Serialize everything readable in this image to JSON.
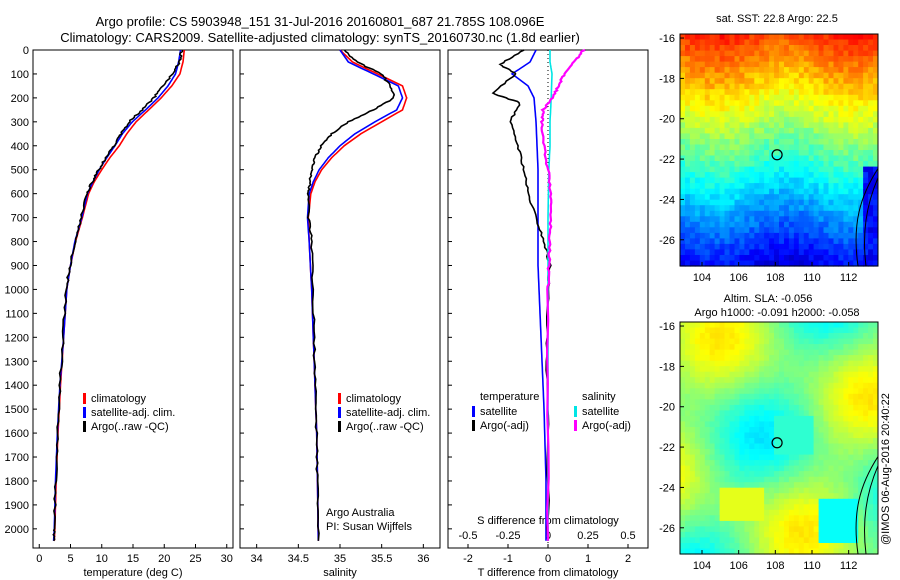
{
  "header": {
    "title_line1": "Argo profile: CS 5903948_151 31-Jul-2016 20160801_687 21.785S 108.096E",
    "title_line2": "Climatology: CARS2009. Satellite-adjusted climatology: synTS_20160730.nc (1.8d earlier)"
  },
  "credit": "@IMOS 06-Aug-2016 20:40:22",
  "colors": {
    "climatology": "#ff0000",
    "satellite": "#0000ff",
    "argo": "#000000",
    "sat_diff_T": "#00e5e5",
    "argo_diff_S": "#ff00ff"
  },
  "chart_data": [
    {
      "id": "temperature",
      "type": "line",
      "xlabel": "temperature (deg C)",
      "xlim": [
        -1,
        31
      ],
      "xticks": [
        0,
        5,
        10,
        15,
        20,
        25,
        30
      ],
      "ylim": [
        2080,
        0
      ],
      "yticks": [
        0,
        100,
        200,
        300,
        400,
        500,
        600,
        700,
        800,
        900,
        1000,
        1100,
        1200,
        1300,
        1400,
        1500,
        1600,
        1700,
        1800,
        1900,
        2000
      ],
      "legend": [
        "climatology",
        "satellite-adj. clim.",
        "Argo(..raw -QC)"
      ],
      "series": [
        {
          "name": "climatology",
          "color": "#ff0000",
          "x": [
            23.2,
            23.0,
            22.5,
            21.2,
            19.5,
            17.5,
            15.5,
            14.0,
            12.8,
            11.3,
            10.0,
            8.8,
            7.9,
            6.9,
            5.8,
            5.0,
            4.4,
            3.9,
            3.4,
            3.0,
            2.7,
            2.5,
            2.4
          ],
          "y": [
            0,
            50,
            100,
            150,
            200,
            250,
            300,
            350,
            400,
            450,
            500,
            550,
            600,
            700,
            800,
            900,
            1000,
            1200,
            1400,
            1600,
            1800,
            2000,
            2050
          ]
        },
        {
          "name": "satellite-adj. clim.",
          "color": "#0000ff",
          "x": [
            22.6,
            22.3,
            21.8,
            20.6,
            19.0,
            17.0,
            14.9,
            13.3,
            12.1,
            10.8,
            9.6,
            8.6,
            7.7,
            6.8,
            5.7,
            5.0,
            4.4,
            3.9,
            3.3,
            2.9,
            2.6,
            2.4,
            2.3
          ],
          "y": [
            0,
            50,
            100,
            150,
            200,
            250,
            300,
            350,
            400,
            450,
            500,
            550,
            600,
            700,
            800,
            900,
            1000,
            1200,
            1400,
            1600,
            1800,
            2000,
            2050
          ]
        },
        {
          "name": "Argo(..raw -QC)",
          "color": "#000000",
          "x": [
            22.8,
            22.4,
            21.4,
            19.8,
            18.3,
            16.4,
            14.4,
            13.1,
            11.9,
            10.7,
            9.5,
            8.5,
            7.6,
            6.7,
            5.7,
            4.9,
            4.3,
            3.8,
            3.3,
            2.9,
            2.6,
            2.4,
            2.3
          ],
          "y": [
            0,
            50,
            100,
            150,
            200,
            250,
            300,
            350,
            400,
            450,
            500,
            550,
            600,
            700,
            800,
            900,
            1000,
            1200,
            1400,
            1600,
            1800,
            2000,
            2050
          ]
        }
      ]
    },
    {
      "id": "salinity",
      "type": "line",
      "xlabel": "salinity",
      "xlim": [
        33.8,
        36.2
      ],
      "xticks": [
        34,
        34.5,
        35,
        35.5,
        36
      ],
      "xticklabels": [
        "34",
        "34.5",
        "35",
        "35.5",
        "36"
      ],
      "ylim": [
        2080,
        0
      ],
      "legend": [
        "climatology",
        "satellite-adj. clim.",
        "Argo(..raw -QC)"
      ],
      "annotation": [
        "Argo Australia",
        "PI: Susan Wijffels"
      ],
      "series": [
        {
          "name": "climatology",
          "color": "#ff0000",
          "x": [
            35.0,
            35.15,
            35.45,
            35.75,
            35.8,
            35.75,
            35.5,
            35.25,
            35.05,
            34.9,
            34.78,
            34.7,
            34.65,
            34.62,
            34.63,
            34.66,
            34.68,
            34.7,
            34.72,
            34.73,
            34.74
          ],
          "y": [
            0,
            50,
            100,
            150,
            200,
            250,
            300,
            350,
            400,
            450,
            500,
            550,
            600,
            700,
            800,
            1000,
            1200,
            1400,
            1600,
            1800,
            2050
          ]
        },
        {
          "name": "satellite-adj. clim.",
          "color": "#0000ff",
          "x": [
            35.0,
            35.1,
            35.4,
            35.7,
            35.75,
            35.68,
            35.42,
            35.18,
            35.0,
            34.86,
            34.75,
            34.68,
            34.63,
            34.61,
            34.63,
            34.66,
            34.68,
            34.7,
            34.72,
            34.73,
            34.74
          ],
          "y": [
            0,
            50,
            100,
            150,
            200,
            250,
            300,
            350,
            400,
            450,
            500,
            550,
            600,
            700,
            800,
            1000,
            1200,
            1400,
            1600,
            1800,
            2050
          ]
        },
        {
          "name": "Argo(..raw -QC)",
          "color": "#000000",
          "x": [
            35.05,
            35.2,
            35.5,
            35.6,
            35.65,
            35.4,
            35.1,
            34.9,
            34.78,
            34.7,
            34.66,
            34.64,
            34.62,
            34.62,
            34.66,
            34.67,
            34.69,
            34.7,
            34.72,
            34.73,
            34.74
          ],
          "y": [
            0,
            50,
            100,
            150,
            200,
            250,
            300,
            350,
            400,
            450,
            500,
            550,
            600,
            700,
            800,
            1000,
            1200,
            1400,
            1600,
            1800,
            2050
          ]
        }
      ]
    },
    {
      "id": "difference",
      "type": "line",
      "xlabel": "T difference from climatology",
      "xlabel_top": "S difference from climatology",
      "xlim": [
        -2.5,
        2.5
      ],
      "xticks": [
        -2,
        -1,
        0,
        1,
        2
      ],
      "sticks": [
        -0.5,
        -0.25,
        0,
        0.25,
        0.5
      ],
      "sticklabels": [
        "-0.5",
        "-0.25",
        "0",
        "0.25",
        "0.5"
      ],
      "ylim": [
        2080,
        0
      ],
      "legend_headers": [
        "temperature",
        "salinity"
      ],
      "legend": [
        "satellite",
        "Argo(-adj)",
        "satellite",
        "Argo(-adj)"
      ],
      "series": [
        {
          "name": "temperature satellite",
          "color": "#0000ff",
          "x": [
            -0.3,
            -0.45,
            -0.9,
            -0.5,
            -0.35,
            -0.3,
            -0.25,
            -0.25,
            -0.25,
            -0.2,
            -0.15,
            -0.1,
            -0.05,
            -0.05
          ],
          "y": [
            0,
            50,
            100,
            150,
            200,
            300,
            500,
            700,
            900,
            1100,
            1300,
            1500,
            1800,
            2050
          ]
        },
        {
          "name": "temperature Argo(-adj)",
          "color": "#000000",
          "x": [
            -0.6,
            -1.2,
            -0.8,
            -1.4,
            -0.7,
            -0.95,
            -0.75,
            -0.6,
            -0.5,
            -0.3,
            -0.1,
            0.05,
            0.0,
            -0.05,
            0.0,
            0.0
          ],
          "y": [
            0,
            60,
            100,
            180,
            220,
            300,
            400,
            500,
            600,
            700,
            800,
            900,
            1000,
            1300,
            1600,
            2050
          ]
        },
        {
          "name": "salinity satellite",
          "color": "#00e5e5",
          "x": [
            0.05,
            0.05,
            0.1,
            0.08,
            0.05,
            0.05,
            0.02,
            0.0,
            0.0,
            0.0,
            0.0
          ],
          "y": [
            0,
            50,
            100,
            200,
            300,
            400,
            500,
            700,
            900,
            1300,
            2050
          ]
        },
        {
          "name": "salinity Argo(-adj)",
          "color": "#ff00ff",
          "x": [
            0.9,
            0.7,
            0.4,
            0.28,
            0.1,
            -0.12,
            -0.15,
            -0.1,
            0.0,
            0.08,
            0.07,
            0.04,
            0.02,
            0.0,
            0.0
          ],
          "y": [
            0,
            40,
            100,
            150,
            200,
            250,
            300,
            400,
            500,
            600,
            700,
            800,
            900,
            1000,
            2050
          ]
        }
      ]
    },
    {
      "id": "sst_map",
      "type": "heatmap",
      "title": "sat. SST: 22.8  Argo: 22.5",
      "xticks": [
        104,
        106,
        108,
        110,
        112
      ],
      "yticks": [
        -16,
        -18,
        -20,
        -22,
        -24,
        -26
      ],
      "xlim": [
        102.8,
        113.6
      ],
      "ylim": [
        -27.3,
        -15.8
      ],
      "marker": {
        "lon": 108.096,
        "lat": -21.785
      }
    },
    {
      "id": "sla_map",
      "type": "heatmap",
      "title_line1": "Altim. SLA: -0.056",
      "title_line2": "Argo h1000: -0.091  h2000: -0.058",
      "xticks": [
        104,
        106,
        108,
        110,
        112
      ],
      "yticks": [
        -16,
        -18,
        -20,
        -22,
        -24,
        -26
      ],
      "xlim": [
        102.8,
        113.6
      ],
      "ylim": [
        -27.3,
        -15.8
      ],
      "marker": {
        "lon": 108.096,
        "lat": -21.785
      }
    }
  ]
}
